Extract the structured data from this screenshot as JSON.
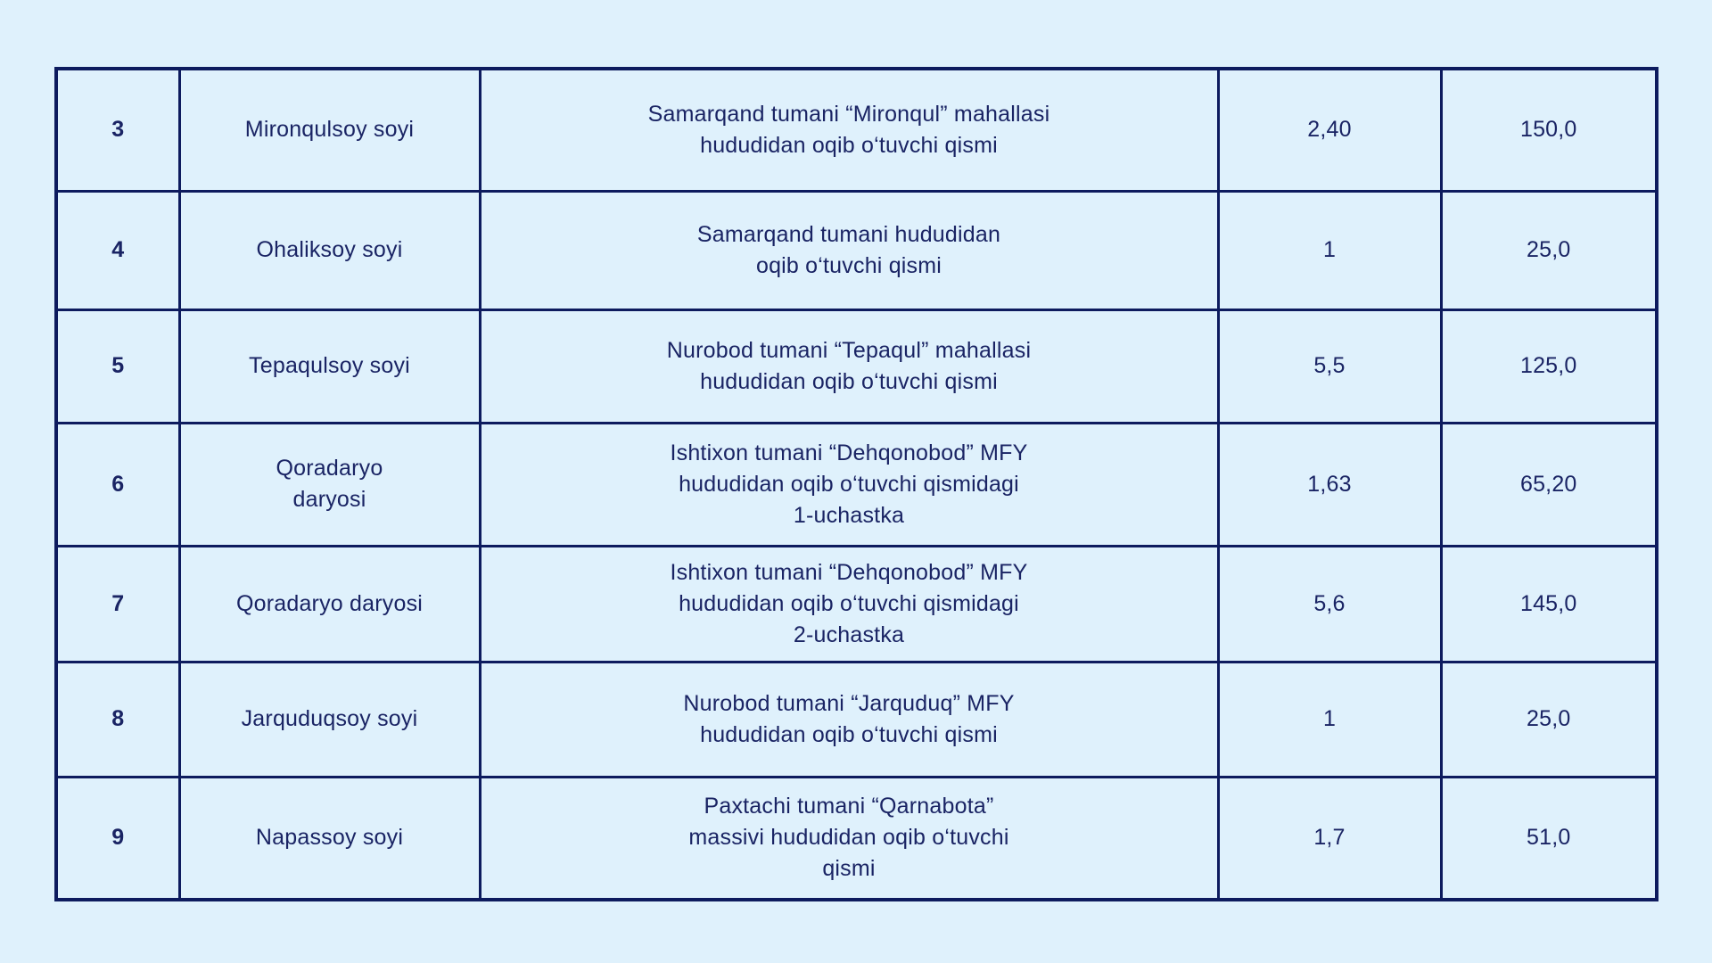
{
  "page": {
    "background_color": "#dff1fc",
    "border_color": "#0d1b5e",
    "text_color": "#1a2464"
  },
  "table": {
    "rows": [
      {
        "no": "3",
        "name": "Mironqulsoy soyi",
        "description": "Samarqand tumani “Mironqul” mahallasi\nhududidan oqib o‘tuvchi qismi",
        "value1": "2,40",
        "value2": "150,0"
      },
      {
        "no": "4",
        "name": "Ohaliksoy soyi",
        "description": "Samarqand tumani hududidan\noqib o‘tuvchi qismi",
        "value1": "1",
        "value2": "25,0"
      },
      {
        "no": "5",
        "name": "Tepaqulsoy soyi",
        "description": "Nurobod tumani “Tepaqul” mahallasi\nhududidan oqib o‘tuvchi qismi",
        "value1": "5,5",
        "value2": "125,0"
      },
      {
        "no": "6",
        "name": "Qoradaryo\ndaryosi",
        "description": "Ishtixon tumani “Dehqonobod” MFY\nhududidan oqib o‘tuvchi qismidagi\n1-uchastka",
        "value1": "1,63",
        "value2": "65,20"
      },
      {
        "no": "7",
        "name": "Qoradaryo daryosi",
        "description": "Ishtixon tumani “Dehqonobod” MFY\nhududidan oqib o‘tuvchi qismidagi\n2-uchastka",
        "value1": "5,6",
        "value2": "145,0"
      },
      {
        "no": "8",
        "name": "Jarquduqsoy soyi",
        "description": "Nurobod tumani “Jarquduq” MFY\nhududidan oqib o‘tuvchi qismi",
        "value1": "1",
        "value2": "25,0"
      },
      {
        "no": "9",
        "name": "Napassoy soyi",
        "description": "Paxtachi tumani “Qarnabota”\nmassivi hududidan oqib o‘tuvchi\nqismi",
        "value1": "1,7",
        "value2": "51,0"
      }
    ]
  }
}
